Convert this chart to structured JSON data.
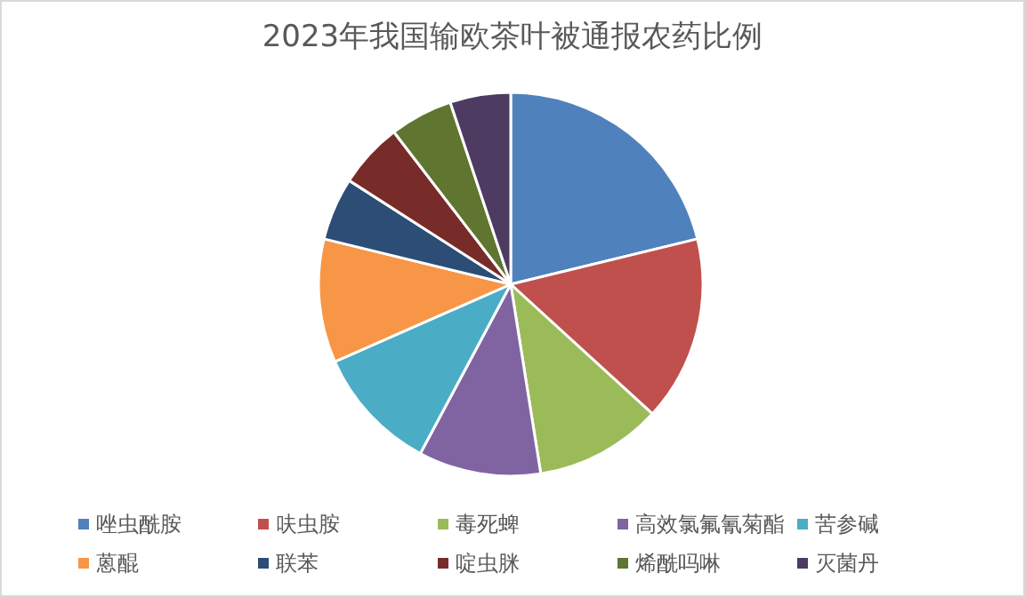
{
  "chart_data": {
    "type": "pie",
    "title": "2023年我国输欧茶叶被通报农药比例",
    "categories": [
      "唑虫酰胺",
      "呋虫胺",
      "毒死蜱",
      "高效氯氟氰菊酯",
      "苦参碱",
      "蒽醌",
      "联苯",
      "啶虫脒",
      "烯酰吗啉",
      "灭菌丹"
    ],
    "values": [
      21.2,
      15.6,
      10.7,
      10.3,
      10.6,
      10.4,
      5.3,
      5.5,
      5.3,
      5.1
    ],
    "colors": [
      "#4f81bd",
      "#c0504d",
      "#9bbb59",
      "#8064a2",
      "#4bacc6",
      "#f79646",
      "#2c4d75",
      "#772c2a",
      "#5f7530",
      "#4d3b62"
    ],
    "legend": "bottom"
  }
}
